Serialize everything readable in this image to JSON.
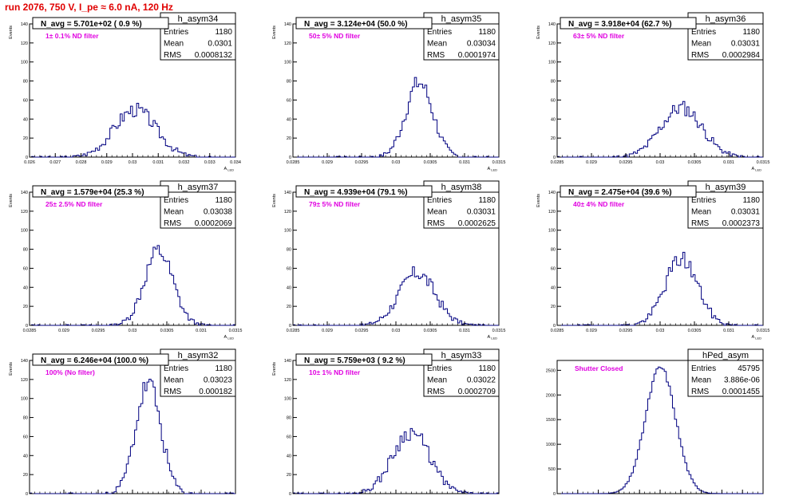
{
  "page": {
    "run_title": "run 2076,   750 V, I_pe ≈ 6.0 nA, 120 Hz"
  },
  "style": {
    "hist_color": "#000080",
    "label_color": "#e000e0",
    "navg_color": "#000000",
    "title_color": "#e00000"
  },
  "chart_data": [
    {
      "type": "bar",
      "name": "h_asym34",
      "navg": "N_avg = 5.701e+02 ( 0.9 %)",
      "filter": "1± 0.1% ND filter",
      "stats": {
        "entries": "1180",
        "mean": "0.0301",
        "rms": "0.0008132"
      },
      "ylabel": "Events",
      "xlabel": "A_LED",
      "xlim": [
        0.026,
        0.034
      ],
      "ylim": [
        0,
        140
      ],
      "xticks": [
        "0.026",
        "0.027",
        "0.028",
        "0.029",
        "0.03",
        "0.031",
        "0.032",
        "0.033",
        "0.034"
      ],
      "yticks": [
        "0",
        "20",
        "40",
        "60",
        "80",
        "100",
        "120",
        "140"
      ],
      "mean": 0.0301,
      "sigma": 0.00081,
      "peak": 50,
      "seed": 3
    },
    {
      "type": "bar",
      "name": "h_asym35",
      "navg": "N_avg = 3.124e+04 (50.0 %)",
      "filter": "50± 5% ND filter",
      "stats": {
        "entries": "1180",
        "mean": "0.03034",
        "rms": "0.0001974"
      },
      "ylabel": "Events",
      "xlabel": "A_LED",
      "xlim": [
        0.0285,
        0.0315
      ],
      "ylim": [
        0,
        140
      ],
      "xticks": [
        "0.0285",
        "0.029",
        "0.0295",
        "0.03",
        "0.0305",
        "0.031",
        "0.0315"
      ],
      "yticks": [
        "0",
        "20",
        "40",
        "60",
        "80",
        "100",
        "120",
        "140"
      ],
      "mean": 0.03034,
      "sigma": 0.000197,
      "peak": 78,
      "seed": 7
    },
    {
      "type": "bar",
      "name": "h_asym36",
      "navg": "N_avg = 3.918e+04 (62.7 %)",
      "filter": "63± 5% ND filter",
      "stats": {
        "entries": "1180",
        "mean": "0.03031",
        "rms": "0.0002984"
      },
      "ylabel": "Events",
      "xlabel": "A_LED",
      "xlim": [
        0.0285,
        0.0315
      ],
      "ylim": [
        0,
        140
      ],
      "xticks": [
        "0.0285",
        "0.029",
        "0.0295",
        "0.03",
        "0.0305",
        "0.031",
        "0.0315"
      ],
      "yticks": [
        "0",
        "20",
        "40",
        "60",
        "80",
        "100",
        "120",
        "140"
      ],
      "mean": 0.03031,
      "sigma": 0.000298,
      "peak": 52,
      "seed": 11
    },
    {
      "type": "bar",
      "name": "h_asym37",
      "navg": "N_avg = 1.579e+04 (25.3 %)",
      "filter": "25± 2.5% ND filter",
      "stats": {
        "entries": "1180",
        "mean": "0.03038",
        "rms": "0.0002069"
      },
      "ylabel": "Events",
      "xlabel": "A_LED",
      "xlim": [
        0.0285,
        0.0315
      ],
      "ylim": [
        0,
        140
      ],
      "xticks": [
        "0.0285",
        "0.029",
        "0.0295",
        "0.03",
        "0.0305",
        "0.031",
        "0.0315"
      ],
      "yticks": [
        "0",
        "20",
        "40",
        "60",
        "80",
        "100",
        "120",
        "140"
      ],
      "mean": 0.03038,
      "sigma": 0.000207,
      "peak": 78,
      "seed": 13
    },
    {
      "type": "bar",
      "name": "h_asym38",
      "navg": "N_avg = 4.939e+04 (79.1 %)",
      "filter": "79± 5% ND filter",
      "stats": {
        "entries": "1180",
        "mean": "0.03031",
        "rms": "0.0002625"
      },
      "ylabel": "Events",
      "xlabel": "A_LED",
      "xlim": [
        0.0285,
        0.0315
      ],
      "ylim": [
        0,
        140
      ],
      "xticks": [
        "0.0285",
        "0.029",
        "0.0295",
        "0.03",
        "0.0305",
        "0.031",
        "0.0315"
      ],
      "yticks": [
        "0",
        "20",
        "40",
        "60",
        "80",
        "100",
        "120",
        "140"
      ],
      "mean": 0.03031,
      "sigma": 0.000262,
      "peak": 55,
      "seed": 17
    },
    {
      "type": "bar",
      "name": "h_asym39",
      "navg": "N_avg = 2.475e+04 (39.6 %)",
      "filter": "40± 4% ND filter",
      "stats": {
        "entries": "1180",
        "mean": "0.03031",
        "rms": "0.0002373"
      },
      "ylabel": "Events",
      "xlabel": "A_LED",
      "xlim": [
        0.0285,
        0.0315
      ],
      "ylim": [
        0,
        140
      ],
      "xticks": [
        "0.0285",
        "0.029",
        "0.0295",
        "0.03",
        "0.0305",
        "0.031",
        "0.0315"
      ],
      "yticks": [
        "0",
        "20",
        "40",
        "60",
        "80",
        "100",
        "120",
        "140"
      ],
      "mean": 0.03031,
      "sigma": 0.000237,
      "peak": 70,
      "seed": 19
    },
    {
      "type": "bar",
      "name": "h_asym32",
      "navg": "N_avg = 6.246e+04 (100.0 %)",
      "filter": "100% (No filter)",
      "stats": {
        "entries": "1180",
        "mean": "0.03023",
        "rms": "0.000182"
      },
      "ylabel": "Events",
      "xlabel": "A_LED",
      "xlim": [
        0.0285,
        0.0315
      ],
      "ylim": [
        0,
        140
      ],
      "xticks": [
        "0.0285",
        "0.029",
        "0.0295",
        "0.03",
        "0.0305",
        "0.031",
        "0.0315"
      ],
      "yticks": [
        "0",
        "20",
        "40",
        "60",
        "80",
        "100",
        "120",
        "140"
      ],
      "mean": 0.03023,
      "sigma": 0.000182,
      "peak": 115,
      "seed": 23
    },
    {
      "type": "bar",
      "name": "h_asym33",
      "navg": "N_avg = 5.759e+03 ( 9.2 %)",
      "filter": "10± 1% ND filter",
      "stats": {
        "entries": "1180",
        "mean": "0.03022",
        "rms": "0.0002709"
      },
      "ylabel": "Events",
      "xlabel": "A_LED",
      "xlim": [
        0.0285,
        0.0315
      ],
      "ylim": [
        0,
        140
      ],
      "xticks": [
        "0.0285",
        "0.029",
        "0.0295",
        "0.03",
        "0.0305",
        "0.031",
        "0.0315"
      ],
      "yticks": [
        "0",
        "20",
        "40",
        "60",
        "80",
        "100",
        "120",
        "140"
      ],
      "mean": 0.03022,
      "sigma": 0.000271,
      "peak": 65,
      "seed": 29
    },
    {
      "type": "bar",
      "name": "hPed_asym",
      "navg": "",
      "filter": "Shutter Closed",
      "stats": {
        "entries": "45795",
        "mean": "3.886e-06",
        "rms": "0.0001455"
      },
      "ylabel": "",
      "xlabel": "",
      "xlim": [
        -0.001,
        0.001
      ],
      "ylim": [
        0,
        2700
      ],
      "xticks": [
        "-0.001",
        "-0.0008",
        "-0.0006",
        "-0.0004",
        "-0.0002",
        "0",
        "0.0002",
        "0.0004",
        "0.0006",
        "0.0008",
        "0.001"
      ],
      "yticks": [
        "0",
        "500",
        "1000",
        "1500",
        "2000",
        "2500"
      ],
      "mean": 3.9e-06,
      "sigma": 0.0001455,
      "peak": 2560,
      "seed": 31
    }
  ]
}
